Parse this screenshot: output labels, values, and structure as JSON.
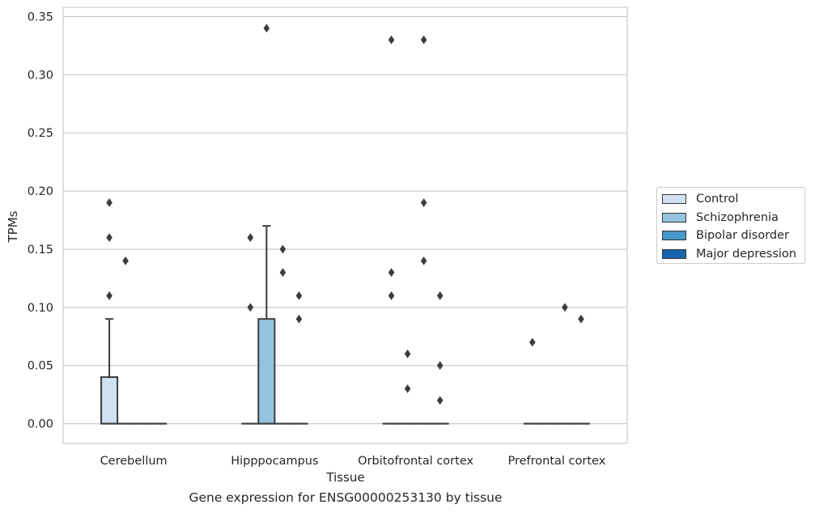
{
  "chart_data": {
    "type": "box",
    "ylabel": "TPMs",
    "xlabel": "Tissue",
    "caption": "Gene expression for ENSG00000253130 by tissue",
    "ylim": [
      -0.017,
      0.358
    ],
    "yticks": [
      "0.00",
      "0.05",
      "0.10",
      "0.15",
      "0.20",
      "0.25",
      "0.30",
      "0.35"
    ],
    "ytick_values": [
      0,
      0.05,
      0.1,
      0.15,
      0.2,
      0.25,
      0.3,
      0.35
    ],
    "grid": "horizontal",
    "legend_position": "right, outside plot",
    "categories": [
      "Cerebellum",
      "Hipppocampus",
      "Orbitofrontal cortex",
      "Prefrontal cortex"
    ],
    "series": [
      {
        "name": "Control",
        "color": "#d0e1f2",
        "boxes": [
          {
            "q1": 0,
            "median": 0,
            "q3": 0.04,
            "whisker_low": 0,
            "whisker_high": 0.09,
            "outliers": [
              0.11,
              0.16,
              0.19
            ]
          },
          {
            "q1": 0,
            "median": 0,
            "q3": 0,
            "whisker_low": 0,
            "whisker_high": 0,
            "outliers": [
              0.1,
              0.16
            ]
          },
          {
            "q1": 0,
            "median": 0,
            "q3": 0,
            "whisker_low": 0,
            "whisker_high": 0,
            "outliers": [
              0.11,
              0.13,
              0.33
            ]
          },
          {
            "q1": 0,
            "median": 0,
            "q3": 0,
            "whisker_low": 0,
            "whisker_high": 0,
            "outliers": [
              0.07
            ]
          }
        ]
      },
      {
        "name": "Schizophrenia",
        "color": "#94c4df",
        "boxes": [
          {
            "q1": 0,
            "median": 0,
            "q3": 0,
            "whisker_low": 0,
            "whisker_high": 0,
            "outliers": [
              0.14
            ]
          },
          {
            "q1": 0,
            "median": 0,
            "q3": 0.09,
            "whisker_low": 0,
            "whisker_high": 0.17,
            "outliers": [
              0.34
            ]
          },
          {
            "q1": 0,
            "median": 0,
            "q3": 0,
            "whisker_low": 0,
            "whisker_high": 0,
            "outliers": [
              0.03,
              0.06
            ]
          },
          {
            "q1": 0,
            "median": 0,
            "q3": 0,
            "whisker_low": 0,
            "whisker_high": 0,
            "outliers": []
          }
        ]
      },
      {
        "name": "Bipolar disorder",
        "color": "#4a98c9",
        "boxes": [
          {
            "q1": 0,
            "median": 0,
            "q3": 0,
            "whisker_low": 0,
            "whisker_high": 0,
            "outliers": []
          },
          {
            "q1": 0,
            "median": 0,
            "q3": 0,
            "whisker_low": 0,
            "whisker_high": 0,
            "outliers": [
              0.13,
              0.15
            ]
          },
          {
            "q1": 0,
            "median": 0,
            "q3": 0,
            "whisker_low": 0,
            "whisker_high": 0,
            "outliers": [
              0.14,
              0.19,
              0.33
            ]
          },
          {
            "q1": 0,
            "median": 0,
            "q3": 0,
            "whisker_low": 0,
            "whisker_high": 0,
            "outliers": [
              0.1
            ]
          }
        ]
      },
      {
        "name": "Major depression",
        "color": "#1764ab",
        "boxes": [
          {
            "q1": 0,
            "median": 0,
            "q3": 0,
            "whisker_low": 0,
            "whisker_high": 0,
            "outliers": []
          },
          {
            "q1": 0,
            "median": 0,
            "q3": 0,
            "whisker_low": 0,
            "whisker_high": 0,
            "outliers": [
              0.09,
              0.11
            ]
          },
          {
            "q1": 0,
            "median": 0,
            "q3": 0,
            "whisker_low": 0,
            "whisker_high": 0,
            "outliers": [
              0.02,
              0.05,
              0.11
            ]
          },
          {
            "q1": 0,
            "median": 0,
            "q3": 0,
            "whisker_low": 0,
            "whisker_high": 0,
            "outliers": [
              0.09
            ]
          }
        ]
      }
    ]
  }
}
